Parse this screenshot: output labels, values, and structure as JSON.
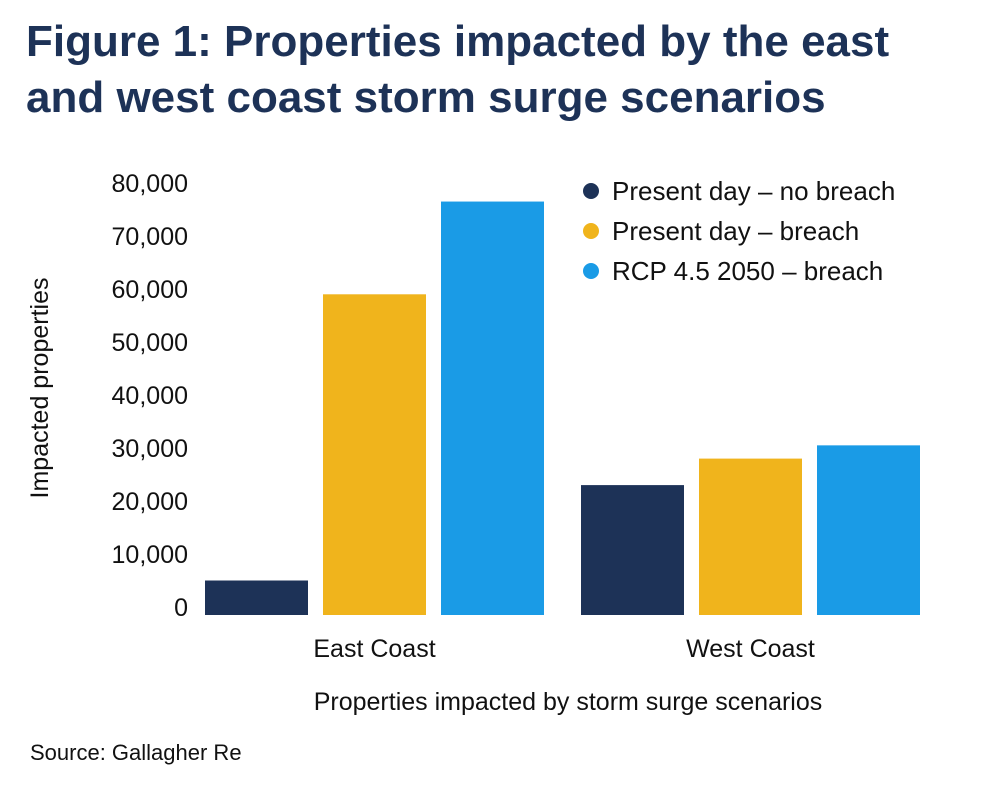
{
  "title": "Figure 1: Properties impacted by the east and west coast storm surge scenarios",
  "source": "Source: Gallagher Re",
  "chart_data": {
    "type": "bar",
    "title": "Figure 1: Properties impacted by the east and west coast storm surge scenarios",
    "xlabel": "Properties impacted by storm surge scenarios",
    "ylabel": "Impacted properties",
    "categories": [
      "East Coast",
      "West Coast"
    ],
    "ylim": [
      0,
      80000
    ],
    "yticks": [
      0,
      10000,
      20000,
      30000,
      40000,
      50000,
      60000,
      70000,
      80000
    ],
    "ytick_labels": [
      "0",
      "10,000",
      "20,000",
      "30,000",
      "40,000",
      "50,000",
      "60,000",
      "70,000",
      "80,000"
    ],
    "grid": false,
    "legend_position": "top-right",
    "series": [
      {
        "name": "Present day – no breach",
        "color": "#1d3257",
        "values": [
          5000,
          23000
        ]
      },
      {
        "name": "Present day – breach",
        "color": "#f0b41c",
        "values": [
          59000,
          28000
        ]
      },
      {
        "name": "RCP 4.5 2050 – breach",
        "color": "#1a9be6",
        "values": [
          76500,
          30500
        ]
      }
    ]
  }
}
